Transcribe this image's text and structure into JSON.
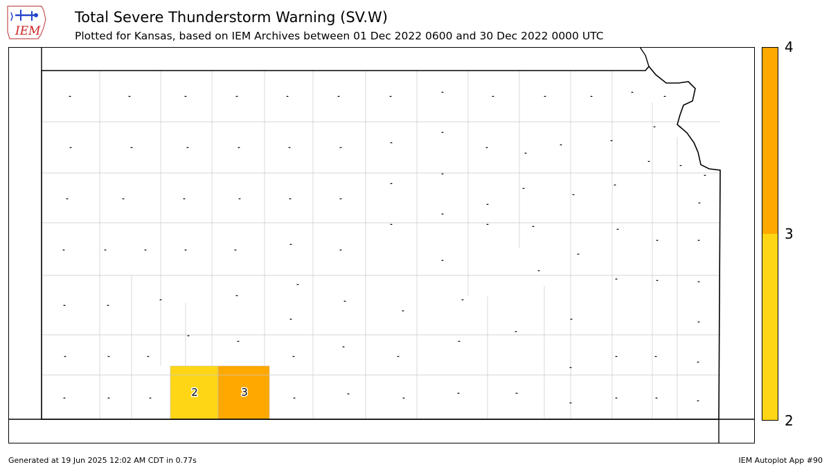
{
  "header": {
    "logo_text": "IEM",
    "title": "Total Severe Thunderstorm Warning (SV.W)",
    "subtitle": "Plotted for Kansas, based on IEM Archives  between 01 Dec 2022 0600 and 30 Dec 2022 0000 UTC"
  },
  "map": {
    "state": "Kansas",
    "empty_marker": "-",
    "county_values": [
      {
        "county": "Seward",
        "value": "2",
        "color": "#fed615"
      },
      {
        "county": "Meade",
        "value": "3",
        "color": "#fea800"
      }
    ]
  },
  "colorbar": {
    "ticks": [
      "4",
      "3",
      "2"
    ],
    "segments": [
      {
        "range": [
          3,
          4
        ],
        "color": "#fea800"
      },
      {
        "range": [
          2,
          3
        ],
        "color": "#fed615"
      }
    ]
  },
  "footer": {
    "generated": "Generated at 19 Jun 2025 12:02 AM CDT in 0.77s",
    "app": "IEM Autoplot App #90"
  }
}
